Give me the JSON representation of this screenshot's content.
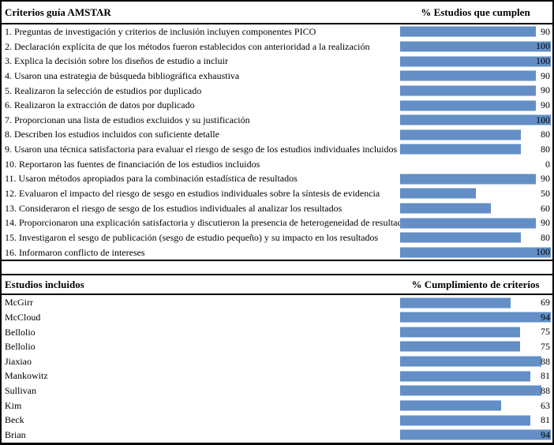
{
  "figure_title": "AMSTAR criteria compliance figure",
  "colors": {
    "bar": "#638EC6",
    "border": "#000000",
    "background": "#ffffff",
    "text": "#000000"
  },
  "chart_data": [
    {
      "type": "bar",
      "orientation": "horizontal",
      "title": "Criterios guía AMSTAR",
      "value_axis_label": "% Estudios que cumplen",
      "categories": [
        "1. Preguntas de investigación y criterios de inclusión incluyen componentes PICO",
        "2. Declaración explícita de que los métodos fueron establecidos con anterioridad a la realización",
        "3. Explica la decisión sobre los diseños de estudio a incluir",
        "4. Usaron una estrategia de búsqueda bibliográfica exhaustiva",
        "5. Realizaron la selección de estudios por duplicado",
        "6. Realizaron la extracción de datos por duplicado",
        "7. Proporcionan una lista de estudios excluidos y su justificación",
        "8. Describen los estudios incluidos con suficiente detalle",
        "9. Usaron una técnica satisfactoria para evaluar el riesgo de sesgo de los estudios individuales incluidos",
        "10. Reportaron las fuentes de financiación de los estudios incluidos",
        "11. Usaron métodos apropiados para la combinación estadística de resultados",
        "12. Evaluaron el impacto del riesgo de sesgo en estudios individuales sobre la síntesis de evidencia",
        "13. Consideraron el riesgo de sesgo de los estudios individuales al analizar los resultados",
        "14. Proporcionaron una explicación satisfactoria y discutieron la presencia de heterogeneidad de resultados",
        "15. Investigaron el sesgo de publicación (sesgo de estudio pequeño) y su impacto en los resultados",
        "16. Informaron conflicto de intereses"
      ],
      "values": [
        90,
        100,
        100,
        90,
        90,
        90,
        100,
        80,
        80,
        0,
        90,
        50,
        60,
        90,
        80,
        100
      ],
      "xlim": [
        0,
        100
      ],
      "bar_color": "#638EC6",
      "grid": false,
      "legend": false
    },
    {
      "type": "bar",
      "orientation": "horizontal",
      "title": "Estudios incluidos",
      "value_axis_label": "% Cumplimiento de criterios",
      "categories": [
        "McGirr",
        "McCloud",
        "Bellolio",
        "Bellolio",
        "Jiaxiao",
        "Mankowitz",
        "Sullivan",
        "Kim",
        "Beck",
        "Brian"
      ],
      "values": [
        69,
        94,
        75,
        75,
        88,
        81,
        88,
        63,
        81,
        94
      ],
      "xlim": [
        0,
        94
      ],
      "bar_color": "#638EC6",
      "grid": false,
      "legend": false
    }
  ]
}
